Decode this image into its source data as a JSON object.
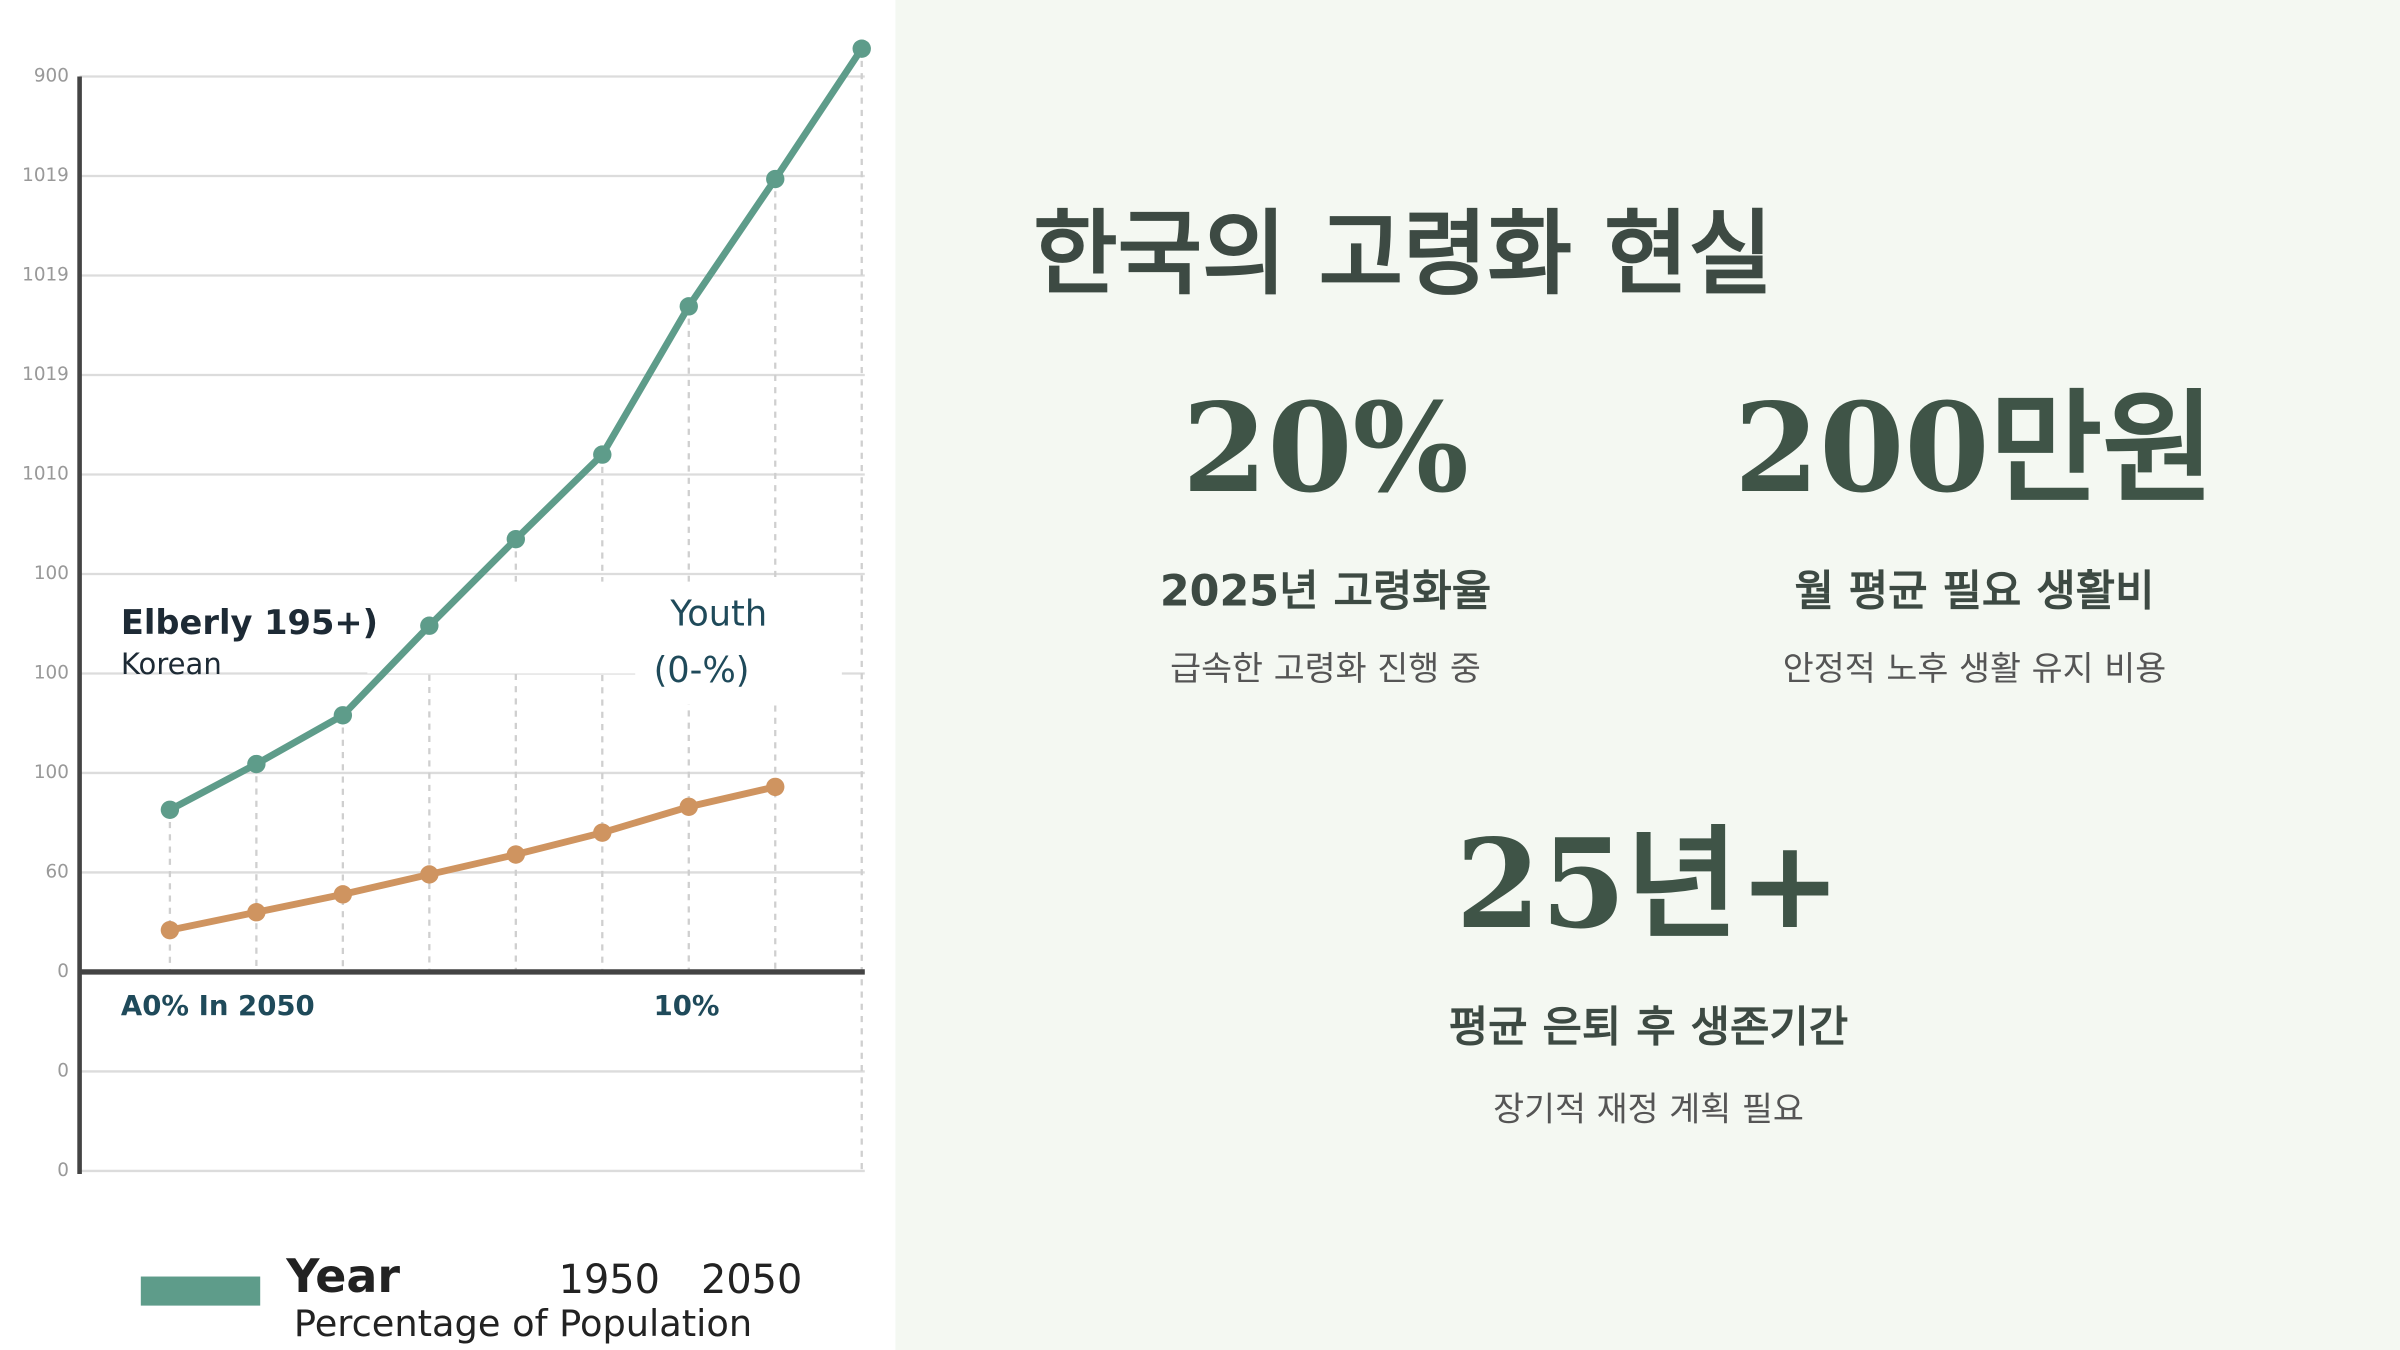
{
  "chart_data": {
    "type": "line",
    "categories": [
      null,
      null,
      null,
      null,
      null,
      null,
      null,
      null,
      null
    ],
    "series": [
      {
        "name": "Year",
        "color": "#5e9c8a",
        "values": [
          16.3,
          20.9,
          25.8,
          34.8,
          43.5,
          52,
          66.9,
          79.7,
          92.8
        ]
      },
      {
        "color": "#cf9460",
        "values": [
          4.2,
          6,
          7.8,
          9.8,
          11.8,
          14,
          16.6,
          18.6,
          null
        ]
      }
    ],
    "ylim": [
      -20,
      95
    ],
    "yticks": [
      {
        "value": -20,
        "label": "0"
      },
      {
        "value": -10,
        "label": "0"
      },
      0,
      {
        "value": 10,
        "label": "60"
      },
      {
        "value": 20,
        "label": "100"
      },
      {
        "value": 30,
        "label": "100"
      },
      {
        "value": 40,
        "label": "100"
      },
      {
        "value": 50,
        "label": "1010"
      },
      {
        "value": 60,
        "label": "1019"
      },
      {
        "value": 70,
        "label": "1019"
      },
      {
        "value": 80,
        "label": "1019"
      },
      {
        "value": 90,
        "label": "900"
      }
    ],
    "grid": true,
    "annotations": [
      "Elberly 195+)",
      "Korean",
      "Youth",
      "(0-%)",
      "A0% In 2050",
      "10%",
      "1950",
      "2050",
      "Percentage of Population"
    ]
  },
  "heading": "한국의 고령화 현실",
  "stats": [
    {
      "value": "20%",
      "label": "2025년 고령화율",
      "desc": "급속한 고령화 진행 중"
    },
    {
      "value": "200만원",
      "label": "월 평균 필요 생활비",
      "desc": "안정적 노후 생활 유지 비용"
    },
    {
      "value": "25년+",
      "label": "평균 은퇴 후 생존기간",
      "desc": "장기적 재정 계획 필요"
    }
  ]
}
